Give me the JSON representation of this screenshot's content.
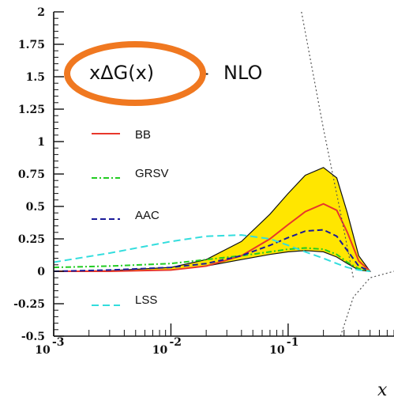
{
  "chart_data": {
    "type": "line",
    "title_left": "xΔG(x)",
    "title_dash": "-",
    "title_right": "NLO",
    "xlabel": "x",
    "xscale": "log",
    "xlim": [
      0.001,
      0.8
    ],
    "ylim": [
      -0.5,
      2
    ],
    "x_ticks": [
      {
        "value": 0.001,
        "base": "10",
        "exp": "-3"
      },
      {
        "value": 0.01,
        "base": "10",
        "exp": "-2"
      },
      {
        "value": 0.1,
        "base": "10",
        "exp": "-1"
      }
    ],
    "y_ticks": [
      {
        "value": 2,
        "label": "2"
      },
      {
        "value": 1.75,
        "label": "1.75"
      },
      {
        "value": 1.5,
        "label": "1.5"
      },
      {
        "value": 1.25,
        "label": "1.25"
      },
      {
        "value": 1,
        "label": "1"
      },
      {
        "value": 0.75,
        "label": "0.75"
      },
      {
        "value": 0.5,
        "label": "0.5"
      },
      {
        "value": 0.25,
        "label": "0.25"
      },
      {
        "value": 0,
        "label": "0"
      },
      {
        "value": -0.25,
        "label": "-0.25"
      },
      {
        "value": -0.5,
        "label": "-0.5"
      }
    ],
    "band": {
      "color": "#ffe600",
      "x": [
        0.001,
        0.003,
        0.01,
        0.02,
        0.04,
        0.07,
        0.1,
        0.14,
        0.2,
        0.26,
        0.32,
        0.4,
        0.5
      ],
      "upper": [
        0.0,
        0.005,
        0.03,
        0.09,
        0.23,
        0.44,
        0.6,
        0.74,
        0.8,
        0.72,
        0.45,
        0.12,
        0.0
      ],
      "lower": [
        0.0,
        0.0,
        0.01,
        0.04,
        0.09,
        0.13,
        0.15,
        0.16,
        0.15,
        0.11,
        0.06,
        0.01,
        0.0
      ]
    },
    "series": [
      {
        "name": "BB",
        "color": "#e8372b",
        "dash": "none",
        "x": [
          0.001,
          0.003,
          0.01,
          0.02,
          0.04,
          0.07,
          0.1,
          0.14,
          0.2,
          0.26,
          0.32,
          0.4,
          0.5
        ],
        "y": [
          0.0,
          0.0,
          0.01,
          0.04,
          0.12,
          0.25,
          0.36,
          0.46,
          0.52,
          0.47,
          0.3,
          0.08,
          0.0
        ]
      },
      {
        "name": "GRSV",
        "color": "#22cc22",
        "dash": "7 3 2 3",
        "x": [
          0.001,
          0.003,
          0.01,
          0.02,
          0.04,
          0.07,
          0.1,
          0.14,
          0.2,
          0.26,
          0.32,
          0.4,
          0.5
        ],
        "y": [
          0.03,
          0.04,
          0.06,
          0.09,
          0.12,
          0.15,
          0.17,
          0.18,
          0.17,
          0.13,
          0.07,
          0.02,
          0.0
        ]
      },
      {
        "name": "AAC",
        "color": "#1a1a99",
        "dash": "7 4",
        "x": [
          0.001,
          0.003,
          0.01,
          0.02,
          0.04,
          0.07,
          0.1,
          0.14,
          0.2,
          0.26,
          0.32,
          0.4,
          0.5
        ],
        "y": [
          0.0,
          0.01,
          0.03,
          0.06,
          0.12,
          0.2,
          0.26,
          0.31,
          0.32,
          0.27,
          0.16,
          0.04,
          0.0
        ]
      },
      {
        "name": "LSS",
        "color": "#33dddd",
        "dash": "9 5",
        "x": [
          0.001,
          0.003,
          0.01,
          0.02,
          0.04,
          0.07,
          0.1,
          0.14,
          0.2,
          0.26,
          0.32,
          0.4,
          0.5
        ],
        "y": [
          0.07,
          0.14,
          0.23,
          0.27,
          0.28,
          0.25,
          0.2,
          0.15,
          0.1,
          0.06,
          0.03,
          0.01,
          0.0
        ]
      }
    ],
    "guide_lines": [
      {
        "color": "#555555",
        "x": [
          0.13,
          0.2,
          0.28,
          0.36
        ],
        "y": [
          2.0,
          1.1,
          0.45,
          -0.05
        ]
      },
      {
        "color": "#555555",
        "x": [
          0.28,
          0.36,
          0.5,
          0.8
        ],
        "y": [
          -0.5,
          -0.2,
          -0.05,
          0.0
        ]
      }
    ],
    "highlight_color": "#f07820"
  }
}
